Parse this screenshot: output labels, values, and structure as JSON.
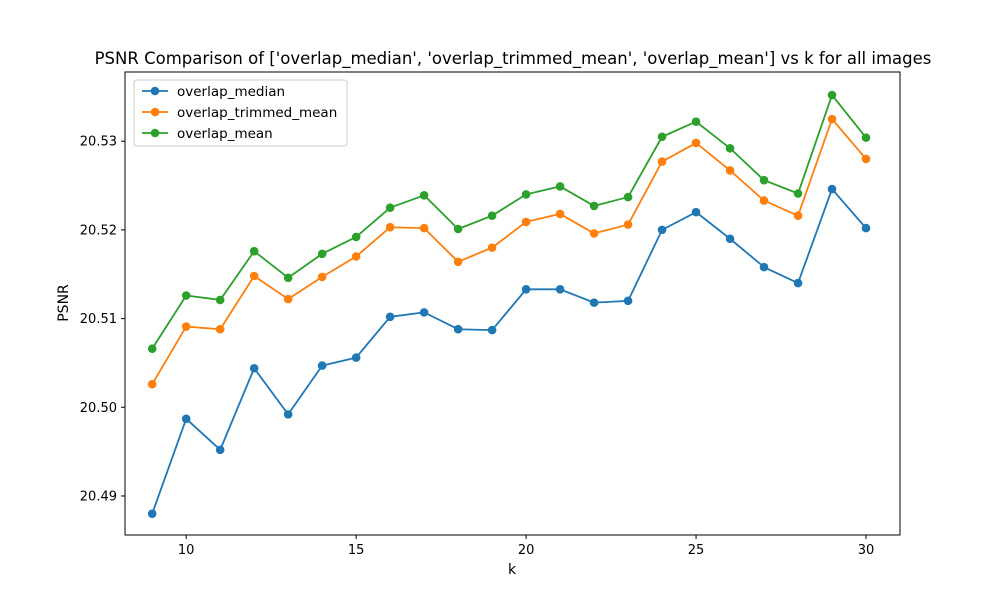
{
  "chart_data": {
    "type": "line",
    "title": "PSNR Comparison of ['overlap_median', 'overlap_trimmed_mean', 'overlap_mean'] vs k for all images",
    "xlabel": "k",
    "ylabel": "PSNR",
    "xlim": [
      8.2,
      31.0
    ],
    "ylim": [
      20.4856,
      20.5378
    ],
    "xticks": [
      10,
      15,
      20,
      25,
      30
    ],
    "yticks": [
      20.49,
      20.5,
      20.51,
      20.52,
      20.53
    ],
    "ytick_labels": [
      "20.49",
      "20.50",
      "20.51",
      "20.52",
      "20.53"
    ],
    "grid": false,
    "legend_position": "top-left",
    "x": [
      9,
      10,
      11,
      12,
      13,
      14,
      15,
      16,
      17,
      18,
      19,
      20,
      21,
      22,
      23,
      24,
      25,
      26,
      27,
      28,
      29,
      30
    ],
    "series": [
      {
        "name": "overlap_median",
        "color": "#1f77b4",
        "values": [
          20.488,
          20.4987,
          20.4952,
          20.5044,
          20.4992,
          20.5047,
          20.5056,
          20.5102,
          20.5107,
          20.5088,
          20.5087,
          20.5133,
          20.5133,
          20.5118,
          20.512,
          20.52,
          20.522,
          20.519,
          20.5158,
          20.514,
          20.5246,
          20.5202
        ]
      },
      {
        "name": "overlap_trimmed_mean",
        "color": "#ff7f0e",
        "values": [
          20.5026,
          20.5091,
          20.5088,
          20.5148,
          20.5122,
          20.5147,
          20.517,
          20.5203,
          20.5202,
          20.5164,
          20.518,
          20.5209,
          20.5218,
          20.5196,
          20.5206,
          20.5277,
          20.5298,
          20.5267,
          20.5233,
          20.5216,
          20.5325,
          20.528
        ]
      },
      {
        "name": "overlap_mean",
        "color": "#2ca02c",
        "values": [
          20.5066,
          20.5126,
          20.5121,
          20.5176,
          20.5146,
          20.5173,
          20.5192,
          20.5225,
          20.5239,
          20.5201,
          20.5216,
          20.524,
          20.5249,
          20.5227,
          20.5237,
          20.5305,
          20.5322,
          20.5292,
          20.5256,
          20.5241,
          20.5352,
          20.5304
        ]
      }
    ]
  }
}
